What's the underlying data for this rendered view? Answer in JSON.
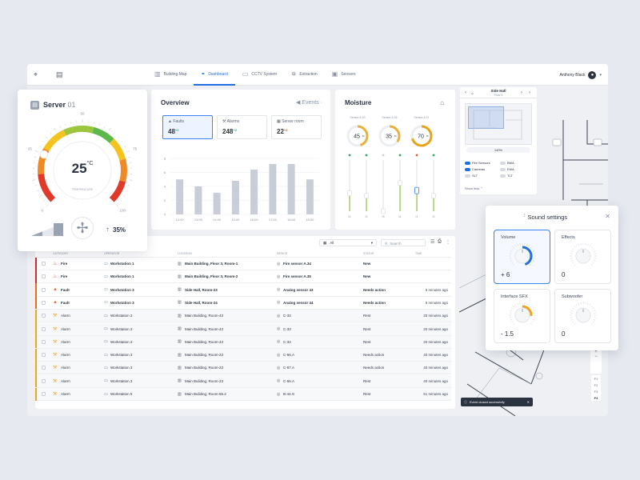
{
  "topbar": {
    "tabs": [
      {
        "label": "Building Map",
        "icon": "building-icon"
      },
      {
        "label": "Dashboard",
        "icon": "dashboard-icon"
      },
      {
        "label": "CCTV System",
        "icon": "cctv-icon"
      },
      {
        "label": "Extraction",
        "icon": "extraction-icon"
      },
      {
        "label": "Sensors",
        "icon": "sensors-icon"
      }
    ],
    "active_tab": "Dashboard",
    "user": "Anthony Black"
  },
  "server": {
    "title": "Server",
    "number": "01",
    "temperature": "25",
    "unit": "°C",
    "gauge_label": "TEMPERATURE",
    "scale": [
      "0",
      "25",
      "50",
      "75",
      "100"
    ],
    "fan_percent": "35%",
    "fan_level": 0.35,
    "temperature_level": 0.25
  },
  "overview": {
    "title": "Overview",
    "events_label": "Events",
    "tabs": [
      {
        "label": "Faults",
        "value": "48",
        "delta": "+2"
      },
      {
        "label": "Alarms",
        "value": "248",
        "delta": "+2"
      },
      {
        "label": "Server room",
        "value": "22",
        "delta": "+4"
      }
    ],
    "chart_data": {
      "type": "bar",
      "categories": [
        "12:00",
        "13:00",
        "14:00",
        "15:00",
        "16:00",
        "17:00",
        "18:00",
        "19:00"
      ],
      "values": [
        5,
        4,
        3.1,
        4.8,
        6.4,
        7.2,
        7.2,
        5
      ],
      "ylim": [
        0,
        8
      ],
      "yticks": [
        "0",
        "2",
        "4",
        "6",
        "8"
      ],
      "grid": true
    }
  },
  "moisture": {
    "title": "Moisture",
    "sensors": [
      {
        "label": "Sensor A 20",
        "value": "45",
        "level": 0.45
      },
      {
        "label": "Sensor A 36",
        "value": "35",
        "level": 0.35
      },
      {
        "label": "Sensor A 37",
        "value": "70",
        "level": 0.7
      }
    ],
    "unit": "%",
    "sliders": [
      {
        "label": "I1",
        "level": 0.35,
        "status": "#2eaa5c"
      },
      {
        "label": "I2",
        "level": 0.3,
        "status": "#2eaa5c"
      },
      {
        "label": "I3",
        "level": 0.0,
        "status": "#c9ced8"
      },
      {
        "label": "I4",
        "level": 0.55,
        "status": "#2eaa5c"
      },
      {
        "label": "I1",
        "level": 0.42,
        "status": "#e05a2a"
      },
      {
        "label": "I2",
        "level": 0.3,
        "status": "#2eaa5c"
      }
    ]
  },
  "map_panel": {
    "title": "Side Hall",
    "subtitle": "Floor 4",
    "zoom": "140%",
    "toggles": [
      {
        "label": "Fire Sensors",
        "on": true
      },
      {
        "label": "BMA",
        "on": false
      },
      {
        "label": "Cameras",
        "on": true
      },
      {
        "label": "EMA",
        "on": false
      },
      {
        "label": "SLT",
        "on": false
      },
      {
        "label": "TLT",
        "on": false
      }
    ],
    "show_less": "Show less",
    "floors": [
      "F1",
      "F2",
      "F3",
      "F4"
    ],
    "zoom_in": "+",
    "zoom_out": "−"
  },
  "events_table": {
    "filter_value": "All",
    "search_placeholder": "Search",
    "headers": [
      "CATEGORY",
      "OPERATOR",
      "LOCATION",
      "DEVICE",
      "STATUS",
      "TIME"
    ],
    "rows": [
      {
        "category": "Fire",
        "operator": "Workstation 1",
        "location": "Main Building, Floor 3, Room-1",
        "device": "Fire sensor A.34",
        "status": "New",
        "time": "",
        "color": "#d62c2c",
        "icon": "fire-icon"
      },
      {
        "category": "Fire",
        "operator": "Workstation 1",
        "location": "Main Building, Floor 3, Room-2",
        "device": "Fire sensor A.35",
        "status": "New",
        "time": "",
        "color": "#d62c2c",
        "icon": "fire-icon"
      },
      {
        "category": "Fault",
        "operator": "Workstation 3",
        "location": "Side Hall, Room-23",
        "device": "Analog sensor 43",
        "status": "Needs action",
        "time": "5 minutes ago",
        "color": "#ef6a1f",
        "icon": "warning-icon"
      },
      {
        "category": "Fault",
        "operator": "Workstation 3",
        "location": "Side Hall, Room-24",
        "device": "Analog sensor 44",
        "status": "Needs action",
        "time": "5 minutes ago",
        "color": "#ef6a1f",
        "icon": "warning-icon"
      },
      {
        "category": "Alarm",
        "operator": "Workstation 2",
        "location": "Main Building, Room-43",
        "device": "C-32",
        "status": "Rest",
        "time": "20 minutes ago",
        "color": "#f4a422",
        "icon": "wrench-icon"
      },
      {
        "category": "Alarm",
        "operator": "Workstation 2",
        "location": "Main Building, Room-43",
        "device": "C-33",
        "status": "Rest",
        "time": "20 minutes ago",
        "color": "#f4a422",
        "icon": "wrench-icon"
      },
      {
        "category": "Alarm",
        "operator": "Workstation 2",
        "location": "Main Building, Room-43",
        "device": "C-34",
        "status": "Rest",
        "time": "20 minutes ago",
        "color": "#f4a422",
        "icon": "wrench-icon"
      },
      {
        "category": "Alarm",
        "operator": "Workstation 3",
        "location": "Main Building, Room-23",
        "device": "C-56.A",
        "status": "Needs action",
        "time": "40 minutes ago",
        "color": "#f4a422",
        "icon": "wrench-icon"
      },
      {
        "category": "Alarm",
        "operator": "Workstation 3",
        "location": "Main Building, Room-23",
        "device": "C-57.A",
        "status": "Needs action",
        "time": "40 minutes ago",
        "color": "#f4a422",
        "icon": "wrench-icon"
      },
      {
        "category": "Alarm",
        "operator": "Workstation 3",
        "location": "Main Building, Room-23",
        "device": "C-56.A",
        "status": "Rest",
        "time": "40 minutes ago",
        "color": "#f4a422",
        "icon": "wrench-icon"
      },
      {
        "category": "Alarm",
        "operator": "Workstation 5",
        "location": "Main Building, Room-55.2",
        "device": "B-44.G",
        "status": "Rest",
        "time": "51 minutes ago",
        "color": "#f4a422",
        "icon": "wrench-icon"
      }
    ]
  },
  "toast": {
    "text": "Event closed sucessfully"
  },
  "sound_settings": {
    "title": "Sound settings",
    "items": [
      {
        "label": "Volume",
        "value": "+ 6",
        "level": 0.6,
        "selected": true
      },
      {
        "label": "Effects",
        "value": "0",
        "level": 0.0,
        "selected": false
      },
      {
        "label": "Interface SFX",
        "value": "- 1.5",
        "level": 0.35,
        "selected": false
      },
      {
        "label": "Subwoofer",
        "value": "0",
        "level": 0.0,
        "selected": false
      }
    ]
  }
}
